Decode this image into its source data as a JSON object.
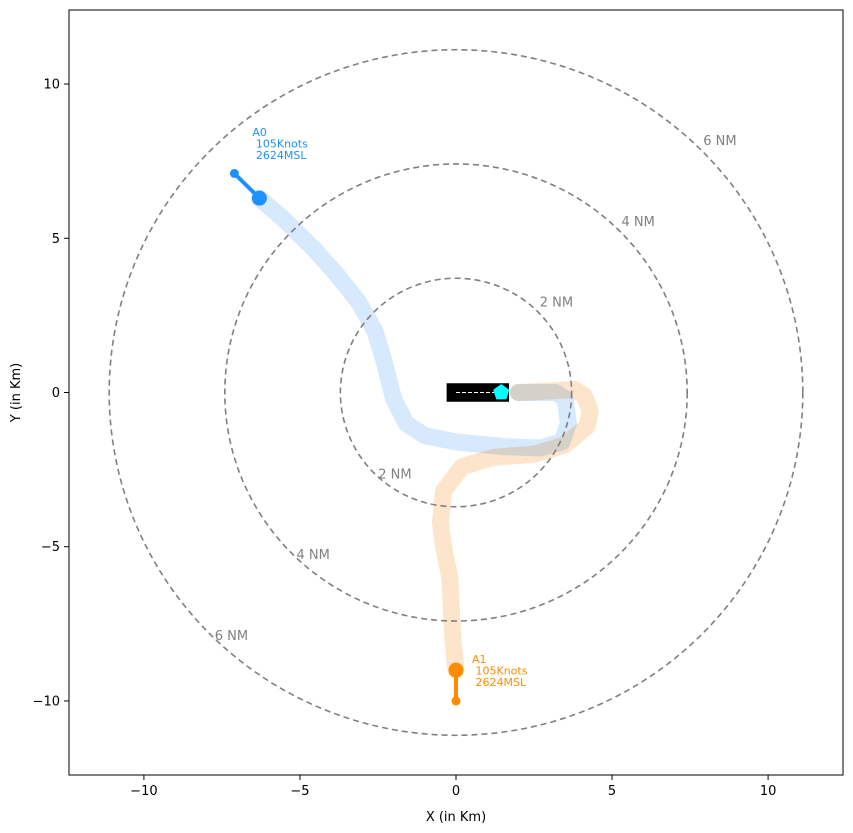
{
  "chart_data": {
    "type": "scatter",
    "xlabel": "X (in Km)",
    "ylabel": "Y (in Km)",
    "xlim": [
      -12.4,
      12.4
    ],
    "ylim": [
      -12.4,
      12.4
    ],
    "xticks": [
      -10,
      -5,
      0,
      5,
      10
    ],
    "yticks": [
      -10,
      -5,
      0,
      5,
      10
    ],
    "xtick_labels": [
      "−10",
      "−5",
      "0",
      "5",
      "10"
    ],
    "ytick_labels": [
      "−10",
      "−5",
      "0",
      "5",
      "10"
    ],
    "grid": false,
    "range_rings": [
      {
        "radius_km": 3.704,
        "label": "2 NM"
      },
      {
        "radius_km": 7.408,
        "label": "4 NM"
      },
      {
        "radius_km": 11.112,
        "label": "6 NM"
      }
    ],
    "ring_color": "#808080",
    "runway": {
      "x": [
        -0.3,
        1.7
      ],
      "y": [
        -0.3,
        0.3
      ],
      "color": "#000000",
      "centerline_color": "#ffffff"
    },
    "airport_marker": {
      "x": 1.45,
      "y": 0.0,
      "color": "#00ffff",
      "shape": "pentagon"
    },
    "aircraft": [
      {
        "id": "A0",
        "label_lines": [
          "A0",
          " 105Knots",
          " 2624MSL"
        ],
        "color": "#1e90ff",
        "trail_color": "#d5e8fd",
        "position": [
          -6.3,
          6.3
        ],
        "tail": [
          -7.1,
          7.1
        ],
        "trajectory": [
          [
            -6.3,
            6.3
          ],
          [
            -5.5,
            5.6
          ],
          [
            -4.5,
            4.6
          ],
          [
            -3.8,
            3.8
          ],
          [
            -3.1,
            2.9
          ],
          [
            -2.6,
            2.0
          ],
          [
            -2.3,
            1.0
          ],
          [
            -2.0,
            -0.2
          ],
          [
            -1.6,
            -1.0
          ],
          [
            -1.0,
            -1.4
          ],
          [
            0.0,
            -1.6
          ],
          [
            1.5,
            -1.75
          ],
          [
            2.7,
            -1.8
          ],
          [
            3.4,
            -1.6
          ],
          [
            3.6,
            -1.0
          ],
          [
            3.5,
            -0.2
          ],
          [
            3.2,
            0.0
          ],
          [
            2.0,
            0.0
          ]
        ]
      },
      {
        "id": "A1",
        "label_lines": [
          "A1",
          " 105Knots",
          " 2624MSL"
        ],
        "color": "#ff8c00",
        "trail_color": "#fde4c8",
        "position": [
          0.0,
          -9.0
        ],
        "tail": [
          0.0,
          -10.0
        ],
        "trajectory": [
          [
            0.0,
            -9.0
          ],
          [
            -0.1,
            -8.0
          ],
          [
            -0.15,
            -7.0
          ],
          [
            -0.2,
            -6.0
          ],
          [
            -0.4,
            -5.0
          ],
          [
            -0.5,
            -4.2
          ],
          [
            -0.4,
            -3.2
          ],
          [
            0.2,
            -2.4
          ],
          [
            1.2,
            -2.1
          ],
          [
            2.5,
            -2.0
          ],
          [
            3.5,
            -1.7
          ],
          [
            4.2,
            -1.1
          ],
          [
            4.3,
            -0.6
          ],
          [
            4.1,
            -0.1
          ],
          [
            3.8,
            0.1
          ],
          [
            3.0,
            0.05
          ],
          [
            2.0,
            0.0
          ]
        ]
      }
    ]
  }
}
